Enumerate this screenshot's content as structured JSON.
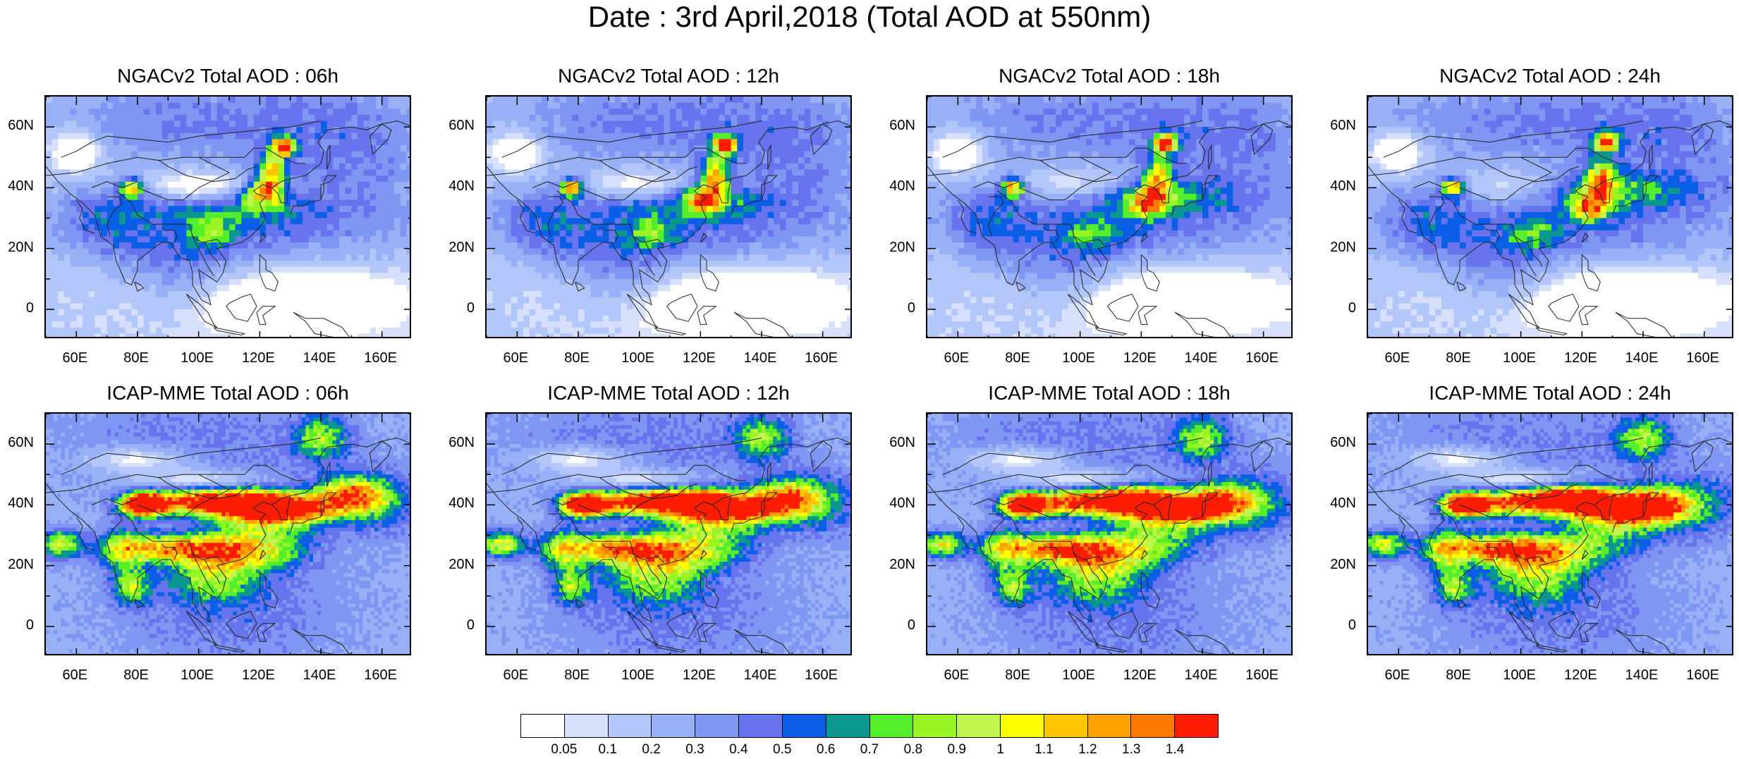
{
  "title": "Date : 3rd April,2018 (Total AOD at 550nm)",
  "x_tick_labels": [
    "60E",
    "80E",
    "100E",
    "120E",
    "140E",
    "160E"
  ],
  "y_tick_labels": [
    "60N",
    "40N",
    "20N",
    "0"
  ],
  "panels": [
    {
      "title": "NGACv2 Total AOD : 06h",
      "model": "NGACv2",
      "hour": 6
    },
    {
      "title": "NGACv2 Total AOD : 12h",
      "model": "NGACv2",
      "hour": 12
    },
    {
      "title": "NGACv2 Total AOD : 18h",
      "model": "NGACv2",
      "hour": 18
    },
    {
      "title": "NGACv2 Total AOD : 24h",
      "model": "NGACv2",
      "hour": 24
    },
    {
      "title": "ICAP-MME Total AOD : 06h",
      "model": "ICAP-MME",
      "hour": 6
    },
    {
      "title": "ICAP-MME Total AOD : 12h",
      "model": "ICAP-MME",
      "hour": 12
    },
    {
      "title": "ICAP-MME Total AOD : 18h",
      "model": "ICAP-MME",
      "hour": 18
    },
    {
      "title": "ICAP-MME Total AOD : 24h",
      "model": "ICAP-MME",
      "hour": 24
    }
  ],
  "colorbar": {
    "labels": [
      "0.05",
      "0.1",
      "0.2",
      "0.3",
      "0.4",
      "0.5",
      "0.6",
      "0.7",
      "0.8",
      "0.9",
      "1",
      "1.1",
      "1.2",
      "1.3",
      "1.4"
    ],
    "colors": [
      "#ffffff",
      "#d6e0fc",
      "#b3c6fa",
      "#98b0f6",
      "#7f97f2",
      "#6874ee",
      "#0a5fe6",
      "#0b968f",
      "#55ee2a",
      "#98f423",
      "#c0f64c",
      "#ffff00",
      "#ffc600",
      "#ffa200",
      "#ff7a00",
      "#ff1d00"
    ]
  }
}
